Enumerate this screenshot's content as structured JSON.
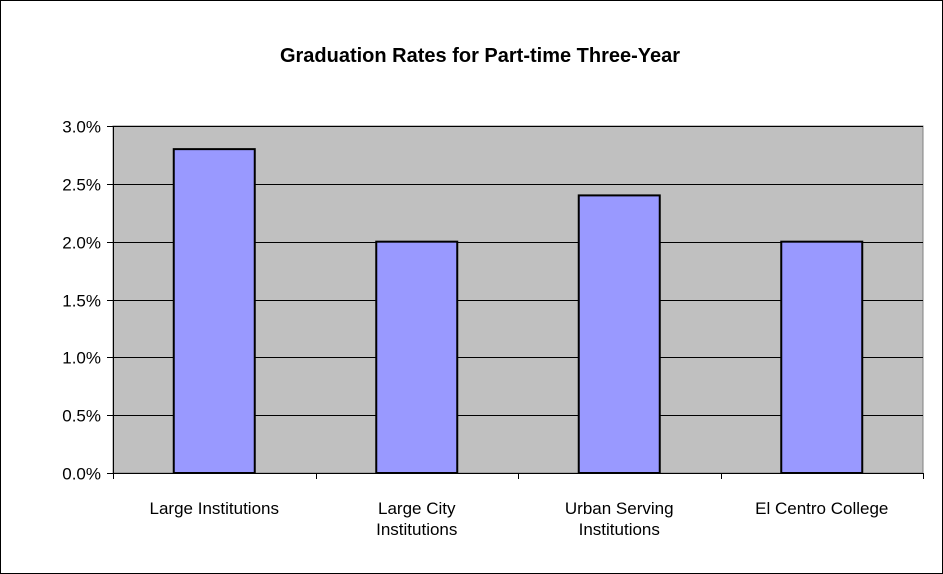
{
  "chart_data": {
    "type": "bar",
    "title": "Graduation Rates for Part-time Three-Year",
    "xlabel": "",
    "ylabel": "",
    "categories": [
      [
        "Large Institutions"
      ],
      [
        "Large City",
        "Institutions"
      ],
      [
        "Urban Serving",
        "Institutions"
      ],
      [
        "El Centro College"
      ]
    ],
    "values": [
      2.8,
      2.0,
      2.4,
      2.0
    ],
    "ylim": [
      0,
      3.0
    ],
    "yticks": [
      0.0,
      0.5,
      1.0,
      1.5,
      2.0,
      2.5,
      3.0
    ],
    "ytick_labels": [
      "0.0%",
      "0.5%",
      "1.0%",
      "1.5%",
      "2.0%",
      "2.5%",
      "3.0%"
    ],
    "grid": true,
    "legend": "none",
    "colors": {
      "bar_fill": "#9999ff",
      "bar_stroke": "#000000",
      "plot_background": "#c0c0c0",
      "gridline": "#000000"
    }
  }
}
